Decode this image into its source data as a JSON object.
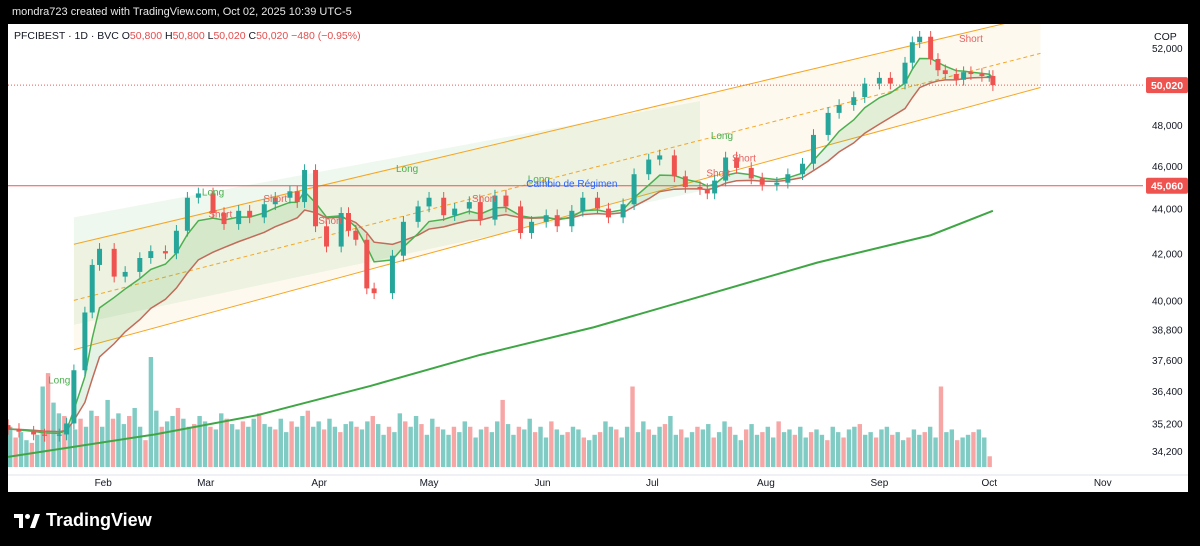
{
  "header": {
    "credit": "mondra723 created with TradingView.com, Oct 02, 2025 10:39 UTC-5"
  },
  "legend": {
    "symbol": "PFCIBEST · 1D · BVC",
    "o_label": "O",
    "o": "50,800",
    "h_label": "H",
    "h": "50,800",
    "l_label": "L",
    "l": "50,020",
    "c_label": "C",
    "c": "50,020",
    "change": "−480 (−0.95%)"
  },
  "currency": "COP",
  "footer": {
    "brand": "TradingView"
  },
  "colors": {
    "up": "#26a69a",
    "down": "#ef5350",
    "vol_up": "#80cbc4",
    "vol_down": "#f7a6a6",
    "ema_fast": "#4caf50",
    "ema_slow": "#c26b5a",
    "sma_long": "#3fa645",
    "channel": "#f5a623",
    "hline": "#ef5350"
  },
  "chart_data": {
    "type": "candlestick",
    "x_axis": {
      "ticks": [
        "Feb",
        "Mar",
        "Apr",
        "May",
        "Jun",
        "Jul",
        "Aug",
        "Sep",
        "Oct",
        "Nov"
      ],
      "tick_dates": [
        "2025-02-01",
        "2025-03-01",
        "2025-04-01",
        "2025-05-01",
        "2025-06-01",
        "2025-07-01",
        "2025-08-01",
        "2025-09-01",
        "2025-10-01",
        "2025-11-01"
      ],
      "range": [
        "2025-01-06",
        "2025-11-12"
      ]
    },
    "y_axis": {
      "ticks": [
        34200,
        35200,
        36400,
        37600,
        38800,
        40000,
        42000,
        44000,
        46000,
        48000,
        52000
      ],
      "range": [
        33400,
        53300
      ],
      "scale": "log"
    },
    "last_price": {
      "value": 50020,
      "label": "50,020"
    },
    "horizontal_line": {
      "value": 45060,
      "label": "45,060"
    },
    "close_series": [
      [
        "2025-01-06",
        35000
      ],
      [
        "2025-01-09",
        34900
      ],
      [
        "2025-01-13",
        34800
      ],
      [
        "2025-01-16",
        34750
      ],
      [
        "2025-01-20",
        34800
      ],
      [
        "2025-01-22",
        35200
      ],
      [
        "2025-01-24",
        37200
      ],
      [
        "2025-01-27",
        39500
      ],
      [
        "2025-01-29",
        41500
      ],
      [
        "2025-01-31",
        42200
      ],
      [
        "2025-02-04",
        41000
      ],
      [
        "2025-02-07",
        41200
      ],
      [
        "2025-02-11",
        41800
      ],
      [
        "2025-02-14",
        42100
      ],
      [
        "2025-02-18",
        42000
      ],
      [
        "2025-02-21",
        43000
      ],
      [
        "2025-02-24",
        44500
      ],
      [
        "2025-02-27",
        44700
      ],
      [
        "2025-03-03",
        43800
      ],
      [
        "2025-03-06",
        43300
      ],
      [
        "2025-03-10",
        43900
      ],
      [
        "2025-03-13",
        43600
      ],
      [
        "2025-03-17",
        44200
      ],
      [
        "2025-03-20",
        44500
      ],
      [
        "2025-03-24",
        44800
      ],
      [
        "2025-03-26",
        44300
      ],
      [
        "2025-03-28",
        45800
      ],
      [
        "2025-03-31",
        43200
      ],
      [
        "2025-04-03",
        42300
      ],
      [
        "2025-04-07",
        43800
      ],
      [
        "2025-04-09",
        43000
      ],
      [
        "2025-04-11",
        42600
      ],
      [
        "2025-04-14",
        40500
      ],
      [
        "2025-04-16",
        40300
      ],
      [
        "2025-04-21",
        41900
      ],
      [
        "2025-04-24",
        43400
      ],
      [
        "2025-04-28",
        44100
      ],
      [
        "2025-05-01",
        44500
      ],
      [
        "2025-05-05",
        43700
      ],
      [
        "2025-05-08",
        44000
      ],
      [
        "2025-05-12",
        44300
      ],
      [
        "2025-05-15",
        43500
      ],
      [
        "2025-05-19",
        44600
      ],
      [
        "2025-05-22",
        44100
      ],
      [
        "2025-05-26",
        42900
      ],
      [
        "2025-05-29",
        43400
      ],
      [
        "2025-06-02",
        43700
      ],
      [
        "2025-06-05",
        43200
      ],
      [
        "2025-06-09",
        43900
      ],
      [
        "2025-06-12",
        44500
      ],
      [
        "2025-06-16",
        44000
      ],
      [
        "2025-06-19",
        43600
      ],
      [
        "2025-06-23",
        44200
      ],
      [
        "2025-06-26",
        45600
      ],
      [
        "2025-06-30",
        46300
      ],
      [
        "2025-07-03",
        46500
      ],
      [
        "2025-07-07",
        45500
      ],
      [
        "2025-07-10",
        45000
      ],
      [
        "2025-07-14",
        44900
      ],
      [
        "2025-07-16",
        44700
      ],
      [
        "2025-07-18",
        45300
      ],
      [
        "2025-07-21",
        46400
      ],
      [
        "2025-07-24",
        45900
      ],
      [
        "2025-07-28",
        45400
      ],
      [
        "2025-07-31",
        45100
      ],
      [
        "2025-08-04",
        45200
      ],
      [
        "2025-08-07",
        45600
      ],
      [
        "2025-08-11",
        46100
      ],
      [
        "2025-08-14",
        47500
      ],
      [
        "2025-08-18",
        48600
      ],
      [
        "2025-08-21",
        49000
      ],
      [
        "2025-08-25",
        49400
      ],
      [
        "2025-08-28",
        50100
      ],
      [
        "2025-09-01",
        50400
      ],
      [
        "2025-09-04",
        50100
      ],
      [
        "2025-09-08",
        51200
      ],
      [
        "2025-09-10",
        52300
      ],
      [
        "2025-09-12",
        52600
      ],
      [
        "2025-09-15",
        51400
      ],
      [
        "2025-09-17",
        50800
      ],
      [
        "2025-09-19",
        50600
      ],
      [
        "2025-09-22",
        50300
      ],
      [
        "2025-09-24",
        50700
      ],
      [
        "2025-09-26",
        50600
      ],
      [
        "2025-09-29",
        50500
      ],
      [
        "2025-10-01",
        50500
      ],
      [
        "2025-10-02",
        50020
      ]
    ],
    "series": [
      {
        "name": "",
        "type": "line",
        "role": "ema_fast"
      },
      {
        "name": "",
        "type": "line",
        "role": "ema_slow"
      },
      {
        "name": "",
        "type": "line",
        "role": "sma_long",
        "points": [
          [
            "2025-01-06",
            34000
          ],
          [
            "2025-02-15",
            34800
          ],
          [
            "2025-03-15",
            35500
          ],
          [
            "2025-04-15",
            36600
          ],
          [
            "2025-05-15",
            37800
          ],
          [
            "2025-06-15",
            38900
          ],
          [
            "2025-07-15",
            40200
          ],
          [
            "2025-08-15",
            41600
          ],
          [
            "2025-09-15",
            42800
          ],
          [
            "2025-10-02",
            43900
          ]
        ]
      }
    ],
    "channel": {
      "upper": [
        [
          "2025-01-24",
          42400
        ],
        [
          "2025-10-15",
          53800
        ]
      ],
      "middle": [
        [
          "2025-01-24",
          40000
        ],
        [
          "2025-10-15",
          51700
        ]
      ],
      "lower": [
        [
          "2025-01-24",
          38000
        ],
        [
          "2025-10-15",
          49900
        ]
      ]
    },
    "annotations": [
      {
        "text": "Long",
        "date": "2025-01-20",
        "value": 36700,
        "kind": "long"
      },
      {
        "text": "Long",
        "date": "2025-03-03",
        "value": 44600,
        "kind": "long"
      },
      {
        "text": "Short",
        "date": "2025-03-05",
        "value": 43600,
        "kind": "short"
      },
      {
        "text": "Short",
        "date": "2025-03-20",
        "value": 44300,
        "kind": "short"
      },
      {
        "text": "Short",
        "date": "2025-04-04",
        "value": 43300,
        "kind": "short"
      },
      {
        "text": "Long",
        "date": "2025-04-25",
        "value": 45700,
        "kind": "long"
      },
      {
        "text": "Short",
        "date": "2025-05-16",
        "value": 44300,
        "kind": "short"
      },
      {
        "text": "Long",
        "date": "2025-05-31",
        "value": 45200,
        "kind": "long"
      },
      {
        "text": "Cambio de Régimen",
        "date": "2025-06-09",
        "value": 45000,
        "kind": "regime"
      },
      {
        "text": "Long",
        "date": "2025-07-20",
        "value": 47300,
        "kind": "long"
      },
      {
        "text": "Short",
        "date": "2025-07-26",
        "value": 46200,
        "kind": "short"
      },
      {
        "text": "Short",
        "date": "2025-07-19",
        "value": 45500,
        "kind": "short"
      },
      {
        "text": "Short",
        "date": "2025-09-26",
        "value": 52300,
        "kind": "short"
      }
    ],
    "volume": [
      30,
      22,
      26,
      20,
      18,
      24,
      60,
      70,
      48,
      40,
      38,
      32,
      28,
      36,
      30,
      42,
      38,
      30,
      50,
      36,
      40,
      32,
      38,
      44,
      30,
      20,
      82,
      42,
      30,
      34,
      38,
      44,
      36,
      30,
      32,
      38,
      34,
      30,
      28,
      40,
      36,
      32,
      28,
      34,
      30,
      36,
      40,
      32,
      30,
      28,
      36,
      26,
      34,
      30,
      38,
      42,
      30,
      34,
      28,
      36,
      30,
      26,
      32,
      34,
      30,
      28,
      34,
      38,
      32,
      24,
      30,
      26,
      40,
      34,
      30,
      38,
      32,
      24,
      36,
      30,
      28,
      24,
      30,
      26,
      34,
      30,
      22,
      28,
      30,
      26,
      34,
      50,
      32,
      24,
      30,
      28,
      36,
      26,
      30,
      22,
      34,
      28,
      24,
      26,
      30,
      28,
      22,
      20,
      24,
      26,
      34,
      30,
      28,
      22,
      30,
      60,
      26,
      34,
      28,
      24,
      30,
      32,
      38,
      24,
      28,
      22,
      26,
      30,
      28,
      32,
      22,
      26,
      34,
      30,
      24,
      20,
      28,
      32,
      24,
      26,
      30,
      22,
      34,
      26,
      28,
      24,
      30,
      22,
      26,
      28,
      24,
      20,
      30,
      26,
      22,
      28,
      30,
      32,
      24,
      26,
      22,
      28,
      30,
      24,
      26,
      20,
      22,
      28,
      24,
      26,
      30,
      22,
      60,
      26,
      28,
      20,
      22,
      24,
      26,
      28,
      22,
      8
    ]
  }
}
